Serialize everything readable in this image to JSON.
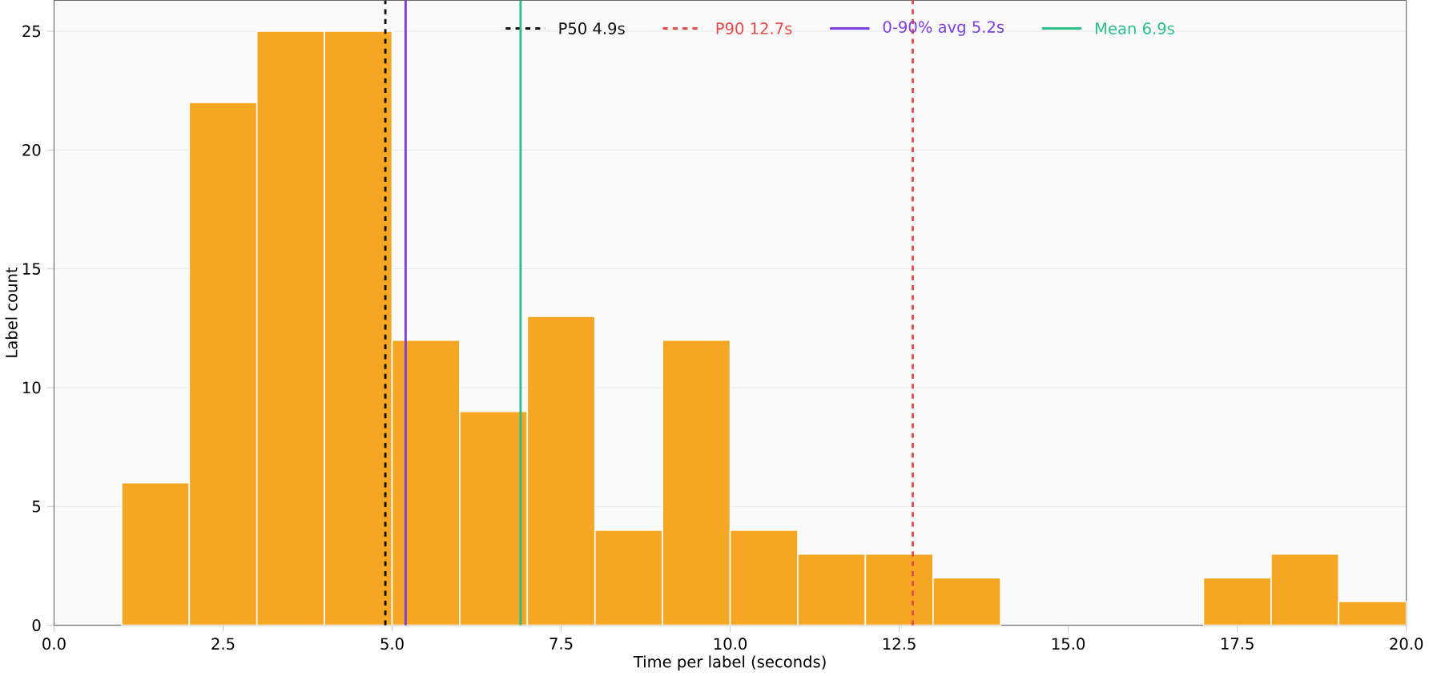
{
  "chart_data": {
    "type": "histogram",
    "xlabel": "Time per label (seconds)",
    "ylabel": "Label count",
    "bins": [
      1,
      2,
      3,
      4,
      5,
      6,
      7,
      8,
      9,
      10,
      11,
      12,
      13,
      14,
      15,
      16,
      17,
      18,
      19,
      20
    ],
    "values": [
      6,
      22,
      25,
      25,
      12,
      9,
      13,
      4,
      12,
      4,
      3,
      3,
      2,
      0,
      0,
      0,
      2,
      3,
      1
    ],
    "color": "#f5a623",
    "xlim": [
      0,
      20
    ],
    "ylim": [
      0,
      26.3
    ],
    "xticks": [
      {
        "value": 0,
        "label": "0.0"
      },
      {
        "value": 2.5,
        "label": "2.5"
      },
      {
        "value": 5,
        "label": "5.0"
      },
      {
        "value": 7.5,
        "label": "7.5"
      },
      {
        "value": 10,
        "label": "10.0"
      },
      {
        "value": 12.5,
        "label": "12.5"
      },
      {
        "value": 15,
        "label": "15.0"
      },
      {
        "value": 17.5,
        "label": "17.5"
      },
      {
        "value": 20,
        "label": "20.0"
      }
    ],
    "yticks": [
      0,
      5,
      10,
      15,
      20,
      25
    ],
    "grid": "y",
    "legend": "top right",
    "ref_lines": [
      {
        "axis": "x",
        "value": 4.9,
        "label": "P50 4.9s",
        "color": "#111111",
        "line_style": "dashed"
      },
      {
        "axis": "x",
        "value": 12.7,
        "label": "P90 12.7s",
        "color": "#e84a4a",
        "line_style": "dashed"
      },
      {
        "axis": "x",
        "value": 5.2,
        "label": "0-90% avg 5.2s",
        "color": "#7b3fe4",
        "line_style": "solid"
      },
      {
        "axis": "x",
        "value": 6.9,
        "label": "Mean 6.9s",
        "color": "#2bbf8a",
        "line_style": "solid"
      }
    ]
  }
}
